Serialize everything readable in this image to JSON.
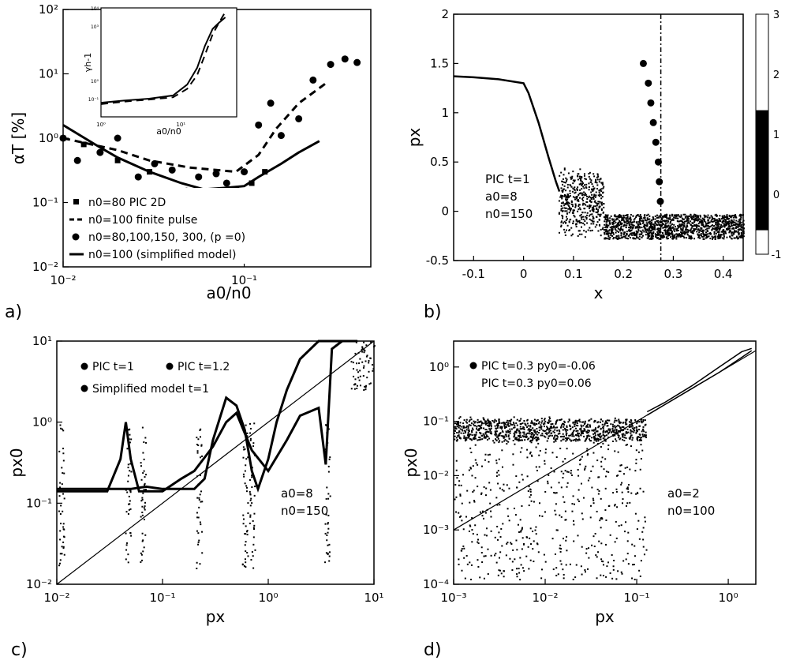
{
  "panels": {
    "a": {
      "label": "a)"
    },
    "b": {
      "label": "b)"
    },
    "c": {
      "label": "c)"
    },
    "d": {
      "label": "d)"
    }
  },
  "chart_data": [
    {
      "id": "a",
      "type": "scatter",
      "xscale": "log",
      "yscale": "log",
      "xlim": [
        0.01,
        0.5
      ],
      "ylim": [
        0.01,
        100
      ],
      "xlabel": "a0/n0",
      "ylabel": "αT [%]",
      "xticks": [
        "10⁻²",
        "10⁻¹"
      ],
      "yticks": [
        "10⁻²",
        "10⁻¹",
        "10⁰",
        "10¹",
        "10²"
      ],
      "legend_position": "bottom-left",
      "legend": [
        "n0=80 PIC 2D",
        "n0=100 finite pulse",
        "n0=80,100,150, 300, (p =0)",
        "n0=100 (simplified model)"
      ],
      "series": [
        {
          "name": "n0=80 PIC 2D",
          "style": "squares",
          "x": [
            0.01,
            0.013,
            0.02,
            0.03,
            0.045,
            0.06,
            0.075,
            0.09,
            0.11,
            0.13
          ],
          "y": [
            1.0,
            0.8,
            0.45,
            0.3,
            0.15,
            0.07,
            0.055,
            0.12,
            0.2,
            0.3
          ]
        },
        {
          "name": "n0=100 finite pulse",
          "style": "dashed",
          "x": [
            0.01,
            0.02,
            0.03,
            0.05,
            0.07,
            0.09,
            0.12,
            0.15,
            0.2,
            0.28
          ],
          "y": [
            1.0,
            0.65,
            0.45,
            0.35,
            0.32,
            0.3,
            0.55,
            1.4,
            3.5,
            7.0
          ]
        },
        {
          "name": "n0=80,100,150, 300, (p =0)",
          "style": "dots",
          "x": [
            0.01,
            0.012,
            0.016,
            0.02,
            0.026,
            0.032,
            0.04,
            0.048,
            0.056,
            0.062,
            0.07,
            0.08,
            0.09,
            0.1,
            0.12,
            0.14,
            0.16,
            0.2,
            0.24,
            0.3,
            0.36,
            0.42
          ],
          "y": [
            1.0,
            0.45,
            0.6,
            1.0,
            0.25,
            0.4,
            0.32,
            0.15,
            0.25,
            0.12,
            0.28,
            0.2,
            0.16,
            0.3,
            1.6,
            3.5,
            1.1,
            2.0,
            8.0,
            14.0,
            17.0,
            15.0
          ]
        },
        {
          "name": "n0=100 (simplified model)",
          "style": "solid",
          "x": [
            0.01,
            0.015,
            0.02,
            0.03,
            0.045,
            0.06,
            0.08,
            0.1,
            0.12,
            0.16,
            0.2,
            0.26
          ],
          "y": [
            1.6,
            0.8,
            0.5,
            0.3,
            0.2,
            0.16,
            0.17,
            0.18,
            0.25,
            0.4,
            0.6,
            0.9
          ]
        }
      ],
      "inset": {
        "type": "line",
        "xscale": "log",
        "yscale": "log",
        "xlim": [
          1,
          50
        ],
        "ylim": [
          0.01,
          10000
        ],
        "xlabel": "a0/n0",
        "ylabel": "γh-1",
        "xticks": [
          "10⁰",
          "10¹"
        ],
        "yticks": [
          "10⁰",
          "10⁻¹",
          "10⁰",
          "10³",
          "10⁴"
        ],
        "series": [
          {
            "name": "model",
            "style": "solid",
            "x": [
              1,
              2,
              4,
              8,
              12,
              16,
              20,
              25,
              30,
              36
            ],
            "y": [
              0.06,
              0.08,
              0.1,
              0.15,
              0.6,
              5,
              80,
              700,
              1500,
              3000
            ]
          },
          {
            "name": "PIC",
            "style": "dashed",
            "x": [
              1,
              2,
              4,
              8,
              12,
              16,
              20,
              25,
              30,
              36
            ],
            "y": [
              0.05,
              0.07,
              0.09,
              0.12,
              0.35,
              2.0,
              25,
              350,
              1500,
              6000
            ]
          }
        ]
      }
    },
    {
      "id": "b",
      "type": "scatter",
      "xlim": [
        -0.14,
        0.44
      ],
      "ylim": [
        -0.5,
        2
      ],
      "xlabel": "x",
      "ylabel": "px",
      "xticks": [
        "-0.1",
        "0",
        "0.1",
        "0.2",
        "0.3",
        "0.4"
      ],
      "yticks": [
        "-0.5",
        "0",
        "0.5",
        "1",
        "1.5",
        "2"
      ],
      "annotation": [
        "PIC t=1",
        "a0=8",
        "n0=150"
      ],
      "colorbar": {
        "ticks": [
          "-1",
          "0",
          "1",
          "2",
          "3"
        ],
        "range": [
          -1,
          3
        ]
      },
      "series": [
        {
          "name": "beam",
          "style": "solid",
          "x": [
            -0.14,
            -0.1,
            -0.05,
            0.0,
            0.01,
            0.03,
            0.05,
            0.065,
            0.072
          ],
          "y": [
            1.37,
            1.36,
            1.34,
            1.3,
            1.2,
            0.9,
            0.55,
            0.3,
            0.2
          ]
        },
        {
          "name": "spike",
          "style": "dots",
          "x": [
            0.24,
            0.25,
            0.255,
            0.26,
            0.265,
            0.27,
            0.272,
            0.274
          ],
          "y": [
            1.5,
            1.3,
            1.1,
            0.9,
            0.7,
            0.5,
            0.3,
            0.1
          ]
        }
      ],
      "vline_x": 0.275
    },
    {
      "id": "c",
      "type": "line",
      "xscale": "log",
      "yscale": "log",
      "xlim": [
        0.01,
        10
      ],
      "ylim": [
        0.01,
        10
      ],
      "xlabel": "px",
      "ylabel": "px0",
      "xticks": [
        "10⁻²",
        "10⁻¹",
        "10⁰",
        "10¹"
      ],
      "yticks": [
        "10⁻²",
        "10⁻¹",
        "10⁰",
        "10¹"
      ],
      "legend_position": "top-left",
      "legend": [
        "PIC t=1",
        "PIC t=1.2",
        "Simplified model t=1"
      ],
      "annotation": [
        "a0=8",
        "n0=150"
      ],
      "series": [
        {
          "name": "y=x",
          "style": "thin",
          "x": [
            0.01,
            10
          ],
          "y": [
            0.01,
            10
          ]
        },
        {
          "name": "Simplified model t=1",
          "style": "solid",
          "x": [
            0.01,
            0.02,
            0.03,
            0.04,
            0.05,
            0.07,
            0.1,
            0.2,
            0.25,
            0.3,
            0.4,
            0.5,
            0.6,
            0.7,
            0.8,
            1.0,
            1.2,
            1.5,
            2.0,
            3.0,
            4.0,
            5.0,
            6.0,
            7.0
          ],
          "y": [
            0.15,
            0.15,
            0.15,
            0.15,
            0.15,
            0.16,
            0.15,
            0.15,
            0.2,
            0.6,
            2.0,
            1.6,
            0.8,
            0.25,
            0.15,
            0.35,
            1.0,
            2.5,
            6.0,
            10,
            10,
            10,
            10,
            10
          ]
        },
        {
          "name": "PIC t=1.2",
          "style": "solid",
          "x": [
            0.01,
            0.02,
            0.03,
            0.04,
            0.045,
            0.05,
            0.06,
            0.1,
            0.15,
            0.2,
            0.3,
            0.4,
            0.5,
            0.7,
            1.0,
            1.5,
            2.0,
            3.0,
            3.5,
            4.0,
            5.0
          ],
          "y": [
            0.14,
            0.14,
            0.14,
            0.35,
            1.0,
            0.35,
            0.14,
            0.14,
            0.2,
            0.25,
            0.5,
            1.0,
            1.3,
            0.45,
            0.25,
            0.6,
            1.2,
            1.5,
            0.3,
            8.0,
            10
          ]
        }
      ]
    },
    {
      "id": "d",
      "type": "scatter",
      "xscale": "log",
      "yscale": "log",
      "xlim": [
        0.001,
        2
      ],
      "ylim": [
        0.0001,
        3
      ],
      "xlabel": "px",
      "ylabel": "px0",
      "xticks": [
        "10⁻³",
        "10⁻²",
        "10⁻¹",
        "10⁰"
      ],
      "yticks": [
        "10⁻⁴",
        "10⁻³",
        "10⁻²",
        "10⁻¹",
        "10⁰"
      ],
      "legend_position": "top-left",
      "legend": [
        "PIC t=0.3 py0=-0.06",
        "PIC t=0.3 py0=0.06"
      ],
      "annotation": [
        "a0=2",
        "n0=100"
      ],
      "series": [
        {
          "name": "y=x",
          "style": "thin",
          "x": [
            0.001,
            2
          ],
          "y": [
            0.001,
            2
          ]
        },
        {
          "name": "PIC t=0.3 py0=-0.06",
          "style": "solid",
          "x": [
            0.13,
            0.2,
            0.4,
            0.8,
            1.4,
            1.8
          ],
          "y": [
            0.15,
            0.22,
            0.45,
            1.0,
            1.9,
            2.2
          ]
        },
        {
          "name": "PIC t=0.3 py0=0.06",
          "style": "solid",
          "x": [
            0.13,
            0.2,
            0.4,
            0.8,
            1.4,
            1.8
          ],
          "y": [
            0.13,
            0.2,
            0.4,
            0.8,
            1.5,
            2.0
          ]
        }
      ]
    }
  ]
}
